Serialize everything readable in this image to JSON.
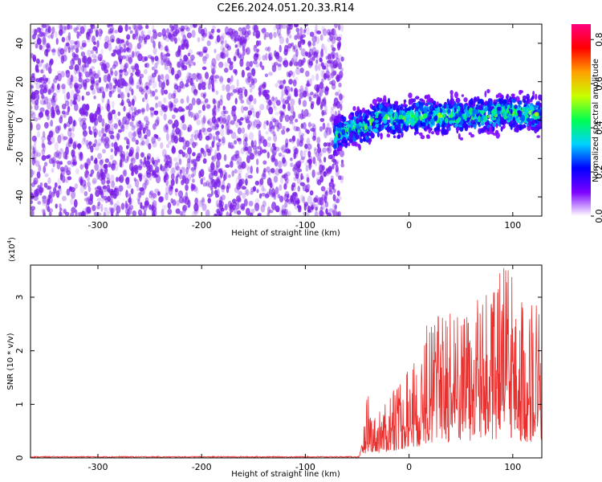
{
  "page_title": "C2E6.2024.051.20.33.R14",
  "chart_data": [
    {
      "type": "heatmap",
      "title": "C2E6.2024.051.20.33.R14",
      "xlabel": "Height of straight line (km)",
      "ylabel": "Frequency (Hz)",
      "xlim": [
        -365,
        128
      ],
      "ylim": [
        -50,
        50
      ],
      "xticks": [
        -300,
        -200,
        -100,
        0,
        100
      ],
      "yticks": [
        -40,
        -20,
        0,
        20,
        40
      ],
      "noise_region_x": [
        -365,
        -72
      ],
      "signal_region_x": [
        -72,
        128
      ],
      "signal_center_freq_hz": [
        {
          "x": -70,
          "y": -8
        },
        {
          "x": -55,
          "y": -4
        },
        {
          "x": -40,
          "y": -3
        },
        {
          "x": -25,
          "y": 2
        },
        {
          "x": -10,
          "y": 0
        },
        {
          "x": 0,
          "y": 2
        },
        {
          "x": 25,
          "y": 2
        },
        {
          "x": 50,
          "y": 2
        },
        {
          "x": 75,
          "y": 3
        },
        {
          "x": 100,
          "y": 4
        },
        {
          "x": 128,
          "y": 3
        }
      ],
      "colorbar": {
        "label": "Normalized spectral amplitude",
        "range": [
          0,
          0.87
        ],
        "ticks": [
          0.0,
          0.2,
          0.4,
          0.6,
          0.8
        ],
        "colors": [
          "#ffffff",
          "#7b00ff",
          "#0000ff",
          "#00d2ff",
          "#00ff50",
          "#c8ff00",
          "#ffa000",
          "#ff0000",
          "#ff0080"
        ]
      },
      "noise_color": "#7a1fe6",
      "grid": false
    },
    {
      "type": "line",
      "title": "",
      "xlabel": "Height of straight line (km)",
      "ylabel": "SNR (10 * v/v)",
      "exponent_label": "(x10",
      "exponent_power": "4",
      "exponent_close": ")",
      "xlim": [
        -365,
        128
      ],
      "ylim": [
        0,
        3.6
      ],
      "xticks": [
        -300,
        -200,
        -100,
        0,
        100
      ],
      "yticks": [
        0,
        1,
        2,
        3
      ],
      "series": [
        {
          "color": "#e8302e",
          "envelope": [
            {
              "x": -365,
              "y": 0.02
            },
            {
              "x": -48,
              "y": 0.02
            },
            {
              "x": -45,
              "y": 0.4
            },
            {
              "x": -40,
              "y": 1.2
            },
            {
              "x": -30,
              "y": 0.9
            },
            {
              "x": -20,
              "y": 1.1
            },
            {
              "x": -10,
              "y": 1.5
            },
            {
              "x": 0,
              "y": 1.7
            },
            {
              "x": 10,
              "y": 2.1
            },
            {
              "x": 20,
              "y": 2.7
            },
            {
              "x": 40,
              "y": 2.8
            },
            {
              "x": 60,
              "y": 2.9
            },
            {
              "x": 80,
              "y": 3.1
            },
            {
              "x": 90,
              "y": 3.6
            },
            {
              "x": 100,
              "y": 3.6
            },
            {
              "x": 110,
              "y": 2.9
            },
            {
              "x": 128,
              "y": 3.0
            }
          ]
        }
      ],
      "grid": false
    }
  ]
}
